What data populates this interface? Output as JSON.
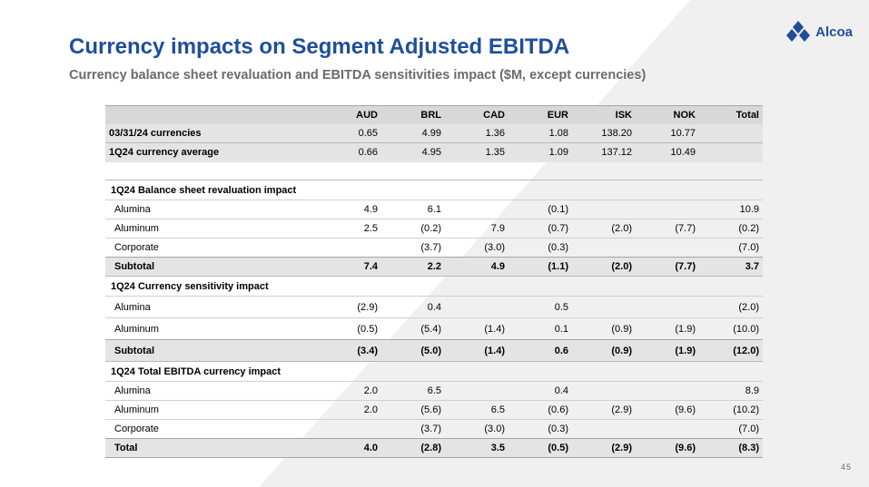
{
  "title": "Currency impacts on Segment Adjusted EBITDA",
  "subtitle": "Currency balance sheet revaluation and EBITDA sensitivities impact ($M, except currencies)",
  "logo": {
    "text": "Alcoa"
  },
  "page_number": "45",
  "colors": {
    "brand_blue": "#1f4e9c",
    "header_gray": "#d8d8d8",
    "band_gray": "#e4e4e4"
  },
  "table": {
    "columns": [
      "",
      "AUD",
      "BRL",
      "CAD",
      "EUR",
      "ISK",
      "NOK",
      "Total"
    ],
    "currency_rows": [
      {
        "label": "03/31/24 currencies",
        "aud": "0.65",
        "brl": "4.99",
        "cad": "1.36",
        "eur": "1.08",
        "isk": "138.20",
        "nok": "10.77",
        "total": ""
      },
      {
        "label": "1Q24 currency average",
        "aud": "0.66",
        "brl": "4.95",
        "cad": "1.35",
        "eur": "1.09",
        "isk": "137.12",
        "nok": "10.49",
        "total": ""
      }
    ],
    "balance_sheet": {
      "title": "1Q24 Balance sheet revaluation impact",
      "rows": [
        {
          "label": "Alumina",
          "aud": "4.9",
          "brl": "6.1",
          "cad": "",
          "eur": "(0.1)",
          "isk": "",
          "nok": "",
          "total": "10.9"
        },
        {
          "label": "Aluminum",
          "aud": "2.5",
          "brl": "(0.2)",
          "cad": "7.9",
          "eur": "(0.7)",
          "isk": "(2.0)",
          "nok": "(7.7)",
          "total": "(0.2)"
        },
        {
          "label": "Corporate",
          "aud": "",
          "brl": "(3.7)",
          "cad": "(3.0)",
          "eur": "(0.3)",
          "isk": "",
          "nok": "",
          "total": "(7.0)"
        }
      ],
      "subtotal": {
        "label": "Subtotal",
        "aud": "7.4",
        "brl": "2.2",
        "cad": "4.9",
        "eur": "(1.1)",
        "isk": "(2.0)",
        "nok": "(7.7)",
        "total": "3.7"
      }
    },
    "sensitivity": {
      "title": "1Q24 Currency sensitivity impact",
      "rows": [
        {
          "label": "Alumina",
          "aud": "(2.9)",
          "brl": "0.4",
          "cad": "",
          "eur": "0.5",
          "isk": "",
          "nok": "",
          "total": "(2.0)"
        },
        {
          "label": "Aluminum",
          "aud": "(0.5)",
          "brl": "(5.4)",
          "cad": "(1.4)",
          "eur": "0.1",
          "isk": "(0.9)",
          "nok": "(1.9)",
          "total": "(10.0)"
        }
      ],
      "subtotal": {
        "label": "Subtotal",
        "aud": "(3.4)",
        "brl": "(5.0)",
        "cad": "(1.4)",
        "eur": "0.6",
        "isk": "(0.9)",
        "nok": "(1.9)",
        "total": "(12.0)"
      }
    },
    "total_impact": {
      "title": "1Q24 Total EBITDA currency impact",
      "rows": [
        {
          "label": "Alumina",
          "aud": "2.0",
          "brl": "6.5",
          "cad": "",
          "eur": "0.4",
          "isk": "",
          "nok": "",
          "total": "8.9"
        },
        {
          "label": "Aluminum",
          "aud": "2.0",
          "brl": "(5.6)",
          "cad": "6.5",
          "eur": "(0.6)",
          "isk": "(2.9)",
          "nok": "(9.6)",
          "total": "(10.2)"
        },
        {
          "label": "Corporate",
          "aud": "",
          "brl": "(3.7)",
          "cad": "(3.0)",
          "eur": "(0.3)",
          "isk": "",
          "nok": "",
          "total": "(7.0)"
        }
      ],
      "subtotal": {
        "label": "Total",
        "aud": "4.0",
        "brl": "(2.8)",
        "cad": "3.5",
        "eur": "(0.5)",
        "isk": "(2.9)",
        "nok": "(9.6)",
        "total": "(8.3)"
      }
    }
  }
}
